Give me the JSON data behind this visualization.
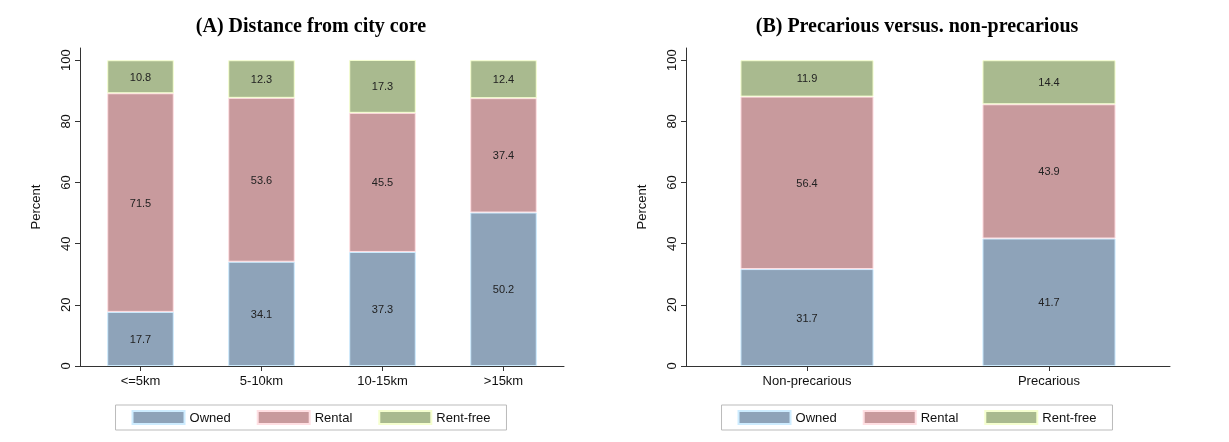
{
  "chart_data": [
    {
      "type": "bar",
      "title": "(A) Distance from city core",
      "ylabel": "Percent",
      "categories": [
        "<=5km",
        "5-10km",
        "10-15km",
        ">15km"
      ],
      "stacked": true,
      "data_labels": true,
      "legend": "bottom",
      "ylim": [
        0,
        104
      ],
      "yticks": [
        0,
        20,
        40,
        60,
        80,
        100
      ],
      "series": [
        {
          "name": "Owned",
          "color": "#8ea3b9",
          "values": [
            17.7,
            34.1,
            37.3,
            50.2
          ]
        },
        {
          "name": "Rental",
          "color": "#c89a9d",
          "values": [
            71.5,
            53.6,
            45.5,
            37.4
          ]
        },
        {
          "name": "Rent-free",
          "color": "#a9ba8f",
          "values": [
            10.8,
            12.3,
            17.3,
            12.4
          ]
        }
      ]
    },
    {
      "type": "bar",
      "title": "(B) Precarious versus. non-precarious",
      "ylabel": "Percent",
      "categories": [
        "Non-precarious",
        "Precarious"
      ],
      "stacked": true,
      "data_labels": true,
      "legend": "bottom",
      "ylim": [
        0,
        104
      ],
      "yticks": [
        0,
        20,
        40,
        60,
        80,
        100
      ],
      "series": [
        {
          "name": "Owned",
          "color": "#8ea3b9",
          "values": [
            31.7,
            41.7
          ]
        },
        {
          "name": "Rental",
          "color": "#c89a9d",
          "values": [
            56.4,
            43.9
          ]
        },
        {
          "name": "Rent-free",
          "color": "#a9ba8f",
          "values": [
            11.9,
            14.4
          ]
        }
      ]
    }
  ]
}
